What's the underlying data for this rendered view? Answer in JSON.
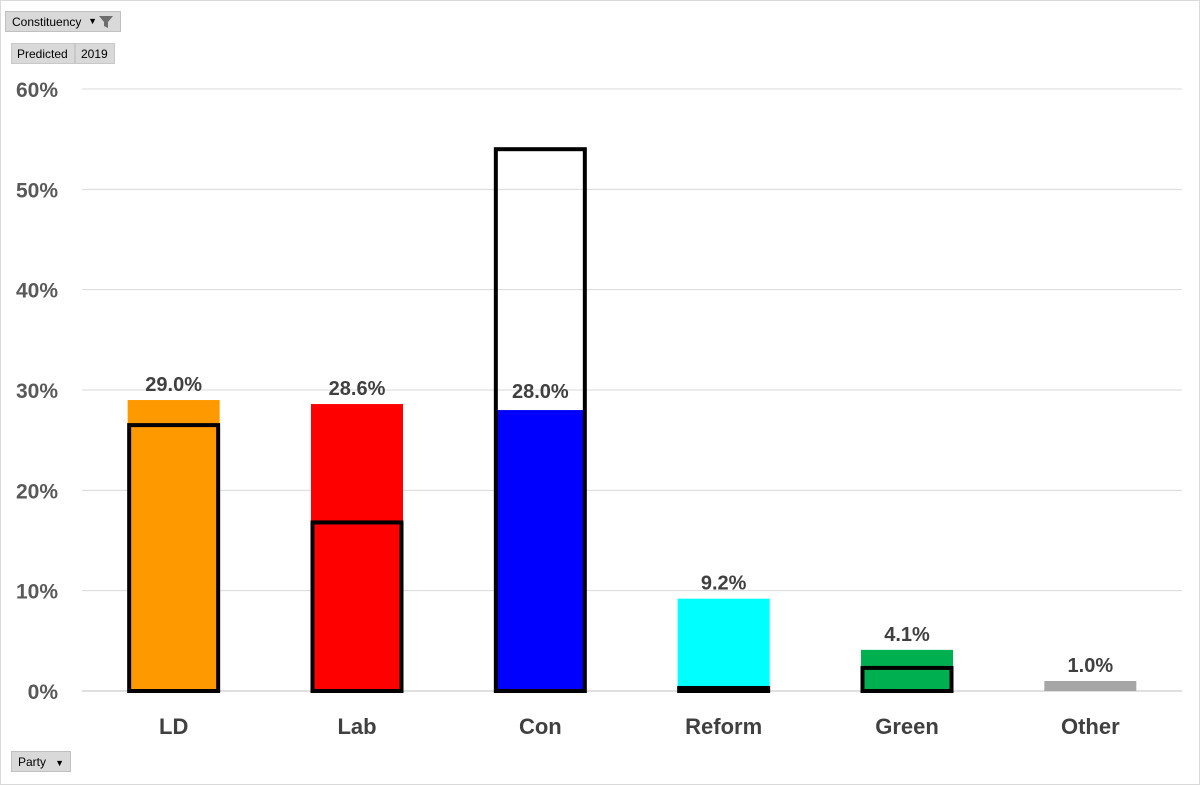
{
  "filter": {
    "label": "Constituency"
  },
  "legend": {
    "predicted": "Predicted",
    "baseline": "2019"
  },
  "party_field": {
    "label": "Party"
  },
  "chart_data": {
    "type": "bar",
    "categories": [
      "LD",
      "Lab",
      "Con",
      "Reform",
      "Green",
      "Other"
    ],
    "series": [
      {
        "name": "Predicted",
        "values": [
          29.0,
          28.6,
          28.0,
          9.2,
          4.1,
          1.0
        ],
        "data_labels": [
          "29.0%",
          "28.6%",
          "28.0%",
          "9.2%",
          "4.1%",
          "1.0%"
        ]
      },
      {
        "name": "2019",
        "values": [
          26.5,
          16.8,
          54.0,
          0.3,
          2.3,
          null
        ],
        "style": "black outline"
      }
    ],
    "colors": [
      "#ff9900",
      "#ff0000",
      "#0000ff",
      "#00ffff",
      "#00b050",
      "#a6a6a6"
    ],
    "yticks": [
      "0%",
      "10%",
      "20%",
      "30%",
      "40%",
      "50%",
      "60%"
    ],
    "ylim": [
      0,
      60
    ],
    "grid": true
  }
}
